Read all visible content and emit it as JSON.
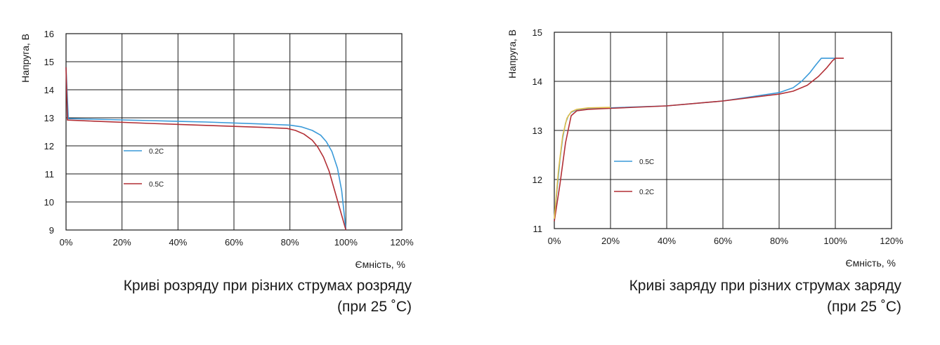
{
  "chart_data": [
    {
      "type": "line",
      "caption": [
        "Криві розряду при різних струмах розряду",
        "(при 25 ˚C)"
      ],
      "xlabel": "Ємність, %",
      "ylabel": "Напруга, В",
      "xlim": [
        0,
        120
      ],
      "ylim": [
        9,
        16
      ],
      "x_ticks": [
        0,
        20,
        40,
        60,
        80,
        100,
        120
      ],
      "x_tick_labels": [
        "0%",
        "20%",
        "40%",
        "60%",
        "80%",
        "100%",
        "120%"
      ],
      "y_ticks": [
        9,
        10,
        11,
        12,
        13,
        14,
        15,
        16
      ],
      "y_tick_labels": [
        "9",
        "10",
        "11",
        "12",
        "13",
        "14",
        "15",
        "16"
      ],
      "grid": true,
      "legend_position": "center-left",
      "series": [
        {
          "name": "0.2C",
          "color": "#3a9ad9",
          "x": [
            0,
            0.8,
            10,
            30,
            50,
            70,
            80,
            84,
            88,
            91,
            93,
            95,
            97,
            98.5,
            100
          ],
          "y": [
            14.8,
            12.97,
            12.95,
            12.9,
            12.85,
            12.78,
            12.74,
            12.68,
            12.55,
            12.38,
            12.15,
            11.8,
            11.2,
            10.4,
            9.0
          ]
        },
        {
          "name": "0.5C",
          "color": "#b22f35",
          "x": [
            0,
            0.5,
            10,
            30,
            50,
            70,
            79,
            82,
            85,
            88,
            90,
            92,
            94,
            96,
            98,
            100
          ],
          "y": [
            14.8,
            12.92,
            12.88,
            12.8,
            12.73,
            12.66,
            12.62,
            12.55,
            12.42,
            12.2,
            11.95,
            11.6,
            11.1,
            10.4,
            9.7,
            9.0
          ]
        }
      ]
    },
    {
      "type": "line",
      "caption": [
        "Криві заряду при різних струмах заряду",
        "(при 25 ˚C)"
      ],
      "xlabel": "Ємність, %",
      "ylabel": "Напруга, В",
      "xlim": [
        0,
        120
      ],
      "ylim": [
        11,
        15
      ],
      "x_ticks": [
        0,
        20,
        40,
        60,
        80,
        100,
        120
      ],
      "x_tick_labels": [
        "0%",
        "20%",
        "40%",
        "60%",
        "80%",
        "100%",
        "120%"
      ],
      "y_ticks": [
        11,
        12,
        13,
        14,
        15
      ],
      "y_tick_labels": [
        "11",
        "12",
        "13",
        "14",
        "15"
      ],
      "grid": true,
      "legend_position": "center-left",
      "series": [
        {
          "name": "0.5C",
          "color": "#3a9ad9",
          "x": [
            0,
            1,
            2,
            3,
            4,
            5,
            6,
            8,
            12,
            20,
            40,
            60,
            80,
            85,
            88,
            91,
            93,
            95,
            100
          ],
          "y": [
            11.18,
            11.8,
            12.4,
            12.85,
            13.15,
            13.3,
            13.37,
            13.42,
            13.45,
            13.46,
            13.5,
            13.6,
            13.77,
            13.87,
            14.0,
            14.18,
            14.33,
            14.47,
            14.47
          ]
        },
        {
          "name": "0.2C",
          "color": "#b22f35",
          "x": [
            0,
            2,
            4,
            6,
            8,
            12,
            20,
            40,
            60,
            80,
            85,
            90,
            94,
            97,
            99,
            100,
            103
          ],
          "y": [
            11.15,
            11.9,
            12.75,
            13.3,
            13.4,
            13.43,
            13.45,
            13.5,
            13.6,
            13.74,
            13.8,
            13.92,
            14.1,
            14.28,
            14.42,
            14.47,
            14.47
          ]
        },
        {
          "name": "",
          "color": "#e3c04a",
          "x": [
            0,
            1.5,
            3,
            4.5,
            6,
            8,
            12,
            20
          ],
          "y": [
            11.2,
            12.2,
            12.9,
            13.25,
            13.38,
            13.43,
            13.46,
            13.47
          ]
        }
      ]
    }
  ]
}
